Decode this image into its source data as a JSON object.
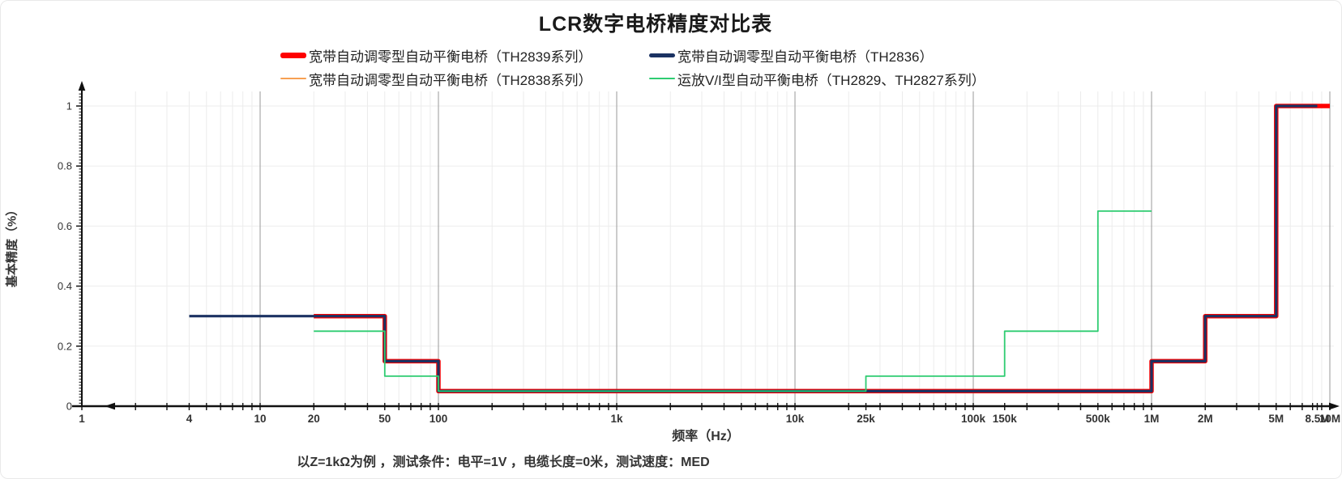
{
  "title": "LCR数字电桥精度对比表",
  "footnote": "以Z=1kΩ为例 ，测试条件：电平=1V ，电缆长度=0米，测试速度：MED",
  "legend": {
    "items": [
      {
        "id": "th2839",
        "label": "宽带自动调零型自动平衡电桥（TH2839系列）",
        "color": "#fe0000",
        "swatch_h": 7
      },
      {
        "id": "th2836",
        "label": "宽带自动调零型自动平衡电桥（TH2836）",
        "color": "#1b3262",
        "swatch_h": 5
      },
      {
        "id": "th2838",
        "label": "宽带自动调零型自动平衡电桥（TH2838系列）",
        "color": "#f7a052",
        "swatch_h": 2.5
      },
      {
        "id": "th2829",
        "label": "运放V/I型自动平衡电桥（TH2829、TH2827系列）",
        "color": "#2ecc71",
        "swatch_h": 2.5
      }
    ]
  },
  "chart_data": {
    "type": "line",
    "subtype": "step",
    "title": "LCR数字电桥精度对比表",
    "xlabel": "频率（Hz）",
    "ylabel": "基本精度（%）",
    "x_scale": "log",
    "xlim": [
      1,
      10000000
    ],
    "ylim": [
      0,
      1.05
    ],
    "grid": {
      "h_values": [
        0.2,
        0.4,
        0.6,
        0.8,
        1.0
      ],
      "minor_color": "#ececec",
      "decade_color": "#9a9a9a",
      "h_color": "#ededed"
    },
    "axis_color": "#111111",
    "x_ticks": [
      {
        "f": 1,
        "label": "1"
      },
      {
        "f": 4,
        "label": "4"
      },
      {
        "f": 10,
        "label": "10"
      },
      {
        "f": 20,
        "label": "20"
      },
      {
        "f": 50,
        "label": "50"
      },
      {
        "f": 100,
        "label": "100"
      },
      {
        "f": 1000,
        "label": "1k"
      },
      {
        "f": 10000,
        "label": "10k"
      },
      {
        "f": 25000,
        "label": "25k"
      },
      {
        "f": 100000,
        "label": "100k"
      },
      {
        "f": 150000,
        "label": "150k"
      },
      {
        "f": 500000,
        "label": "500k"
      },
      {
        "f": 1000000,
        "label": "1M"
      },
      {
        "f": 2000000,
        "label": "2M"
      },
      {
        "f": 5000000,
        "label": "5M"
      },
      {
        "f": 8500000,
        "label": "8.5M"
      },
      {
        "f": 10000000,
        "label": "10M"
      }
    ],
    "y_ticks": [
      {
        "v": 0,
        "label": "0"
      },
      {
        "v": 0.2,
        "label": "0.2"
      },
      {
        "v": 0.4,
        "label": "0.4"
      },
      {
        "v": 0.6,
        "label": "0.6"
      },
      {
        "v": 0.8,
        "label": "0.8"
      },
      {
        "v": 1,
        "label": "1"
      }
    ],
    "series": [
      {
        "name": "宽带自动调零型自动平衡电桥（TH2839系列）",
        "color": "#fe0000",
        "width": 5.5,
        "points": [
          [
            20,
            0.3
          ],
          [
            50,
            0.3
          ],
          [
            50,
            0.15
          ],
          [
            100,
            0.15
          ],
          [
            100,
            0.05
          ],
          [
            1000000,
            0.05
          ],
          [
            1000000,
            0.15
          ],
          [
            2000000,
            0.15
          ],
          [
            2000000,
            0.3
          ],
          [
            5000000,
            0.3
          ],
          [
            5000000,
            1.0
          ],
          [
            10000000,
            1.0
          ]
        ]
      },
      {
        "name": "宽带自动调零型自动平衡电桥（TH2838系列）",
        "color": "#f7a052",
        "width": 2,
        "points": [
          [
            20,
            0.3
          ],
          [
            50,
            0.3
          ],
          [
            50,
            0.15
          ],
          [
            100,
            0.15
          ],
          [
            100,
            0.05
          ],
          [
            1000000,
            0.05
          ],
          [
            1000000,
            0.15
          ],
          [
            2000000,
            0.15
          ]
        ]
      },
      {
        "name": "宽带自动调零型自动平衡电桥（TH2836）",
        "color": "#1b3262",
        "width": 3.2,
        "points": [
          [
            4,
            0.3
          ],
          [
            50,
            0.3
          ],
          [
            50,
            0.15
          ],
          [
            100,
            0.15
          ],
          [
            100,
            0.05
          ],
          [
            1000000,
            0.05
          ],
          [
            1000000,
            0.15
          ],
          [
            2000000,
            0.15
          ],
          [
            2000000,
            0.3
          ],
          [
            5000000,
            0.3
          ],
          [
            5000000,
            1.0
          ],
          [
            8500000,
            1.0
          ]
        ]
      },
      {
        "name": "运放V/I型自动平衡电桥（TH2829、TH2827系列）",
        "color": "#2ecc71",
        "width": 1.8,
        "points": [
          [
            20,
            0.25
          ],
          [
            50,
            0.25
          ],
          [
            50,
            0.1
          ],
          [
            100,
            0.1
          ],
          [
            100,
            0.05
          ],
          [
            25000,
            0.05
          ],
          [
            25000,
            0.1
          ],
          [
            150000,
            0.1
          ],
          [
            150000,
            0.25
          ],
          [
            500000,
            0.25
          ],
          [
            500000,
            0.65
          ],
          [
            1000000,
            0.65
          ]
        ]
      }
    ]
  }
}
